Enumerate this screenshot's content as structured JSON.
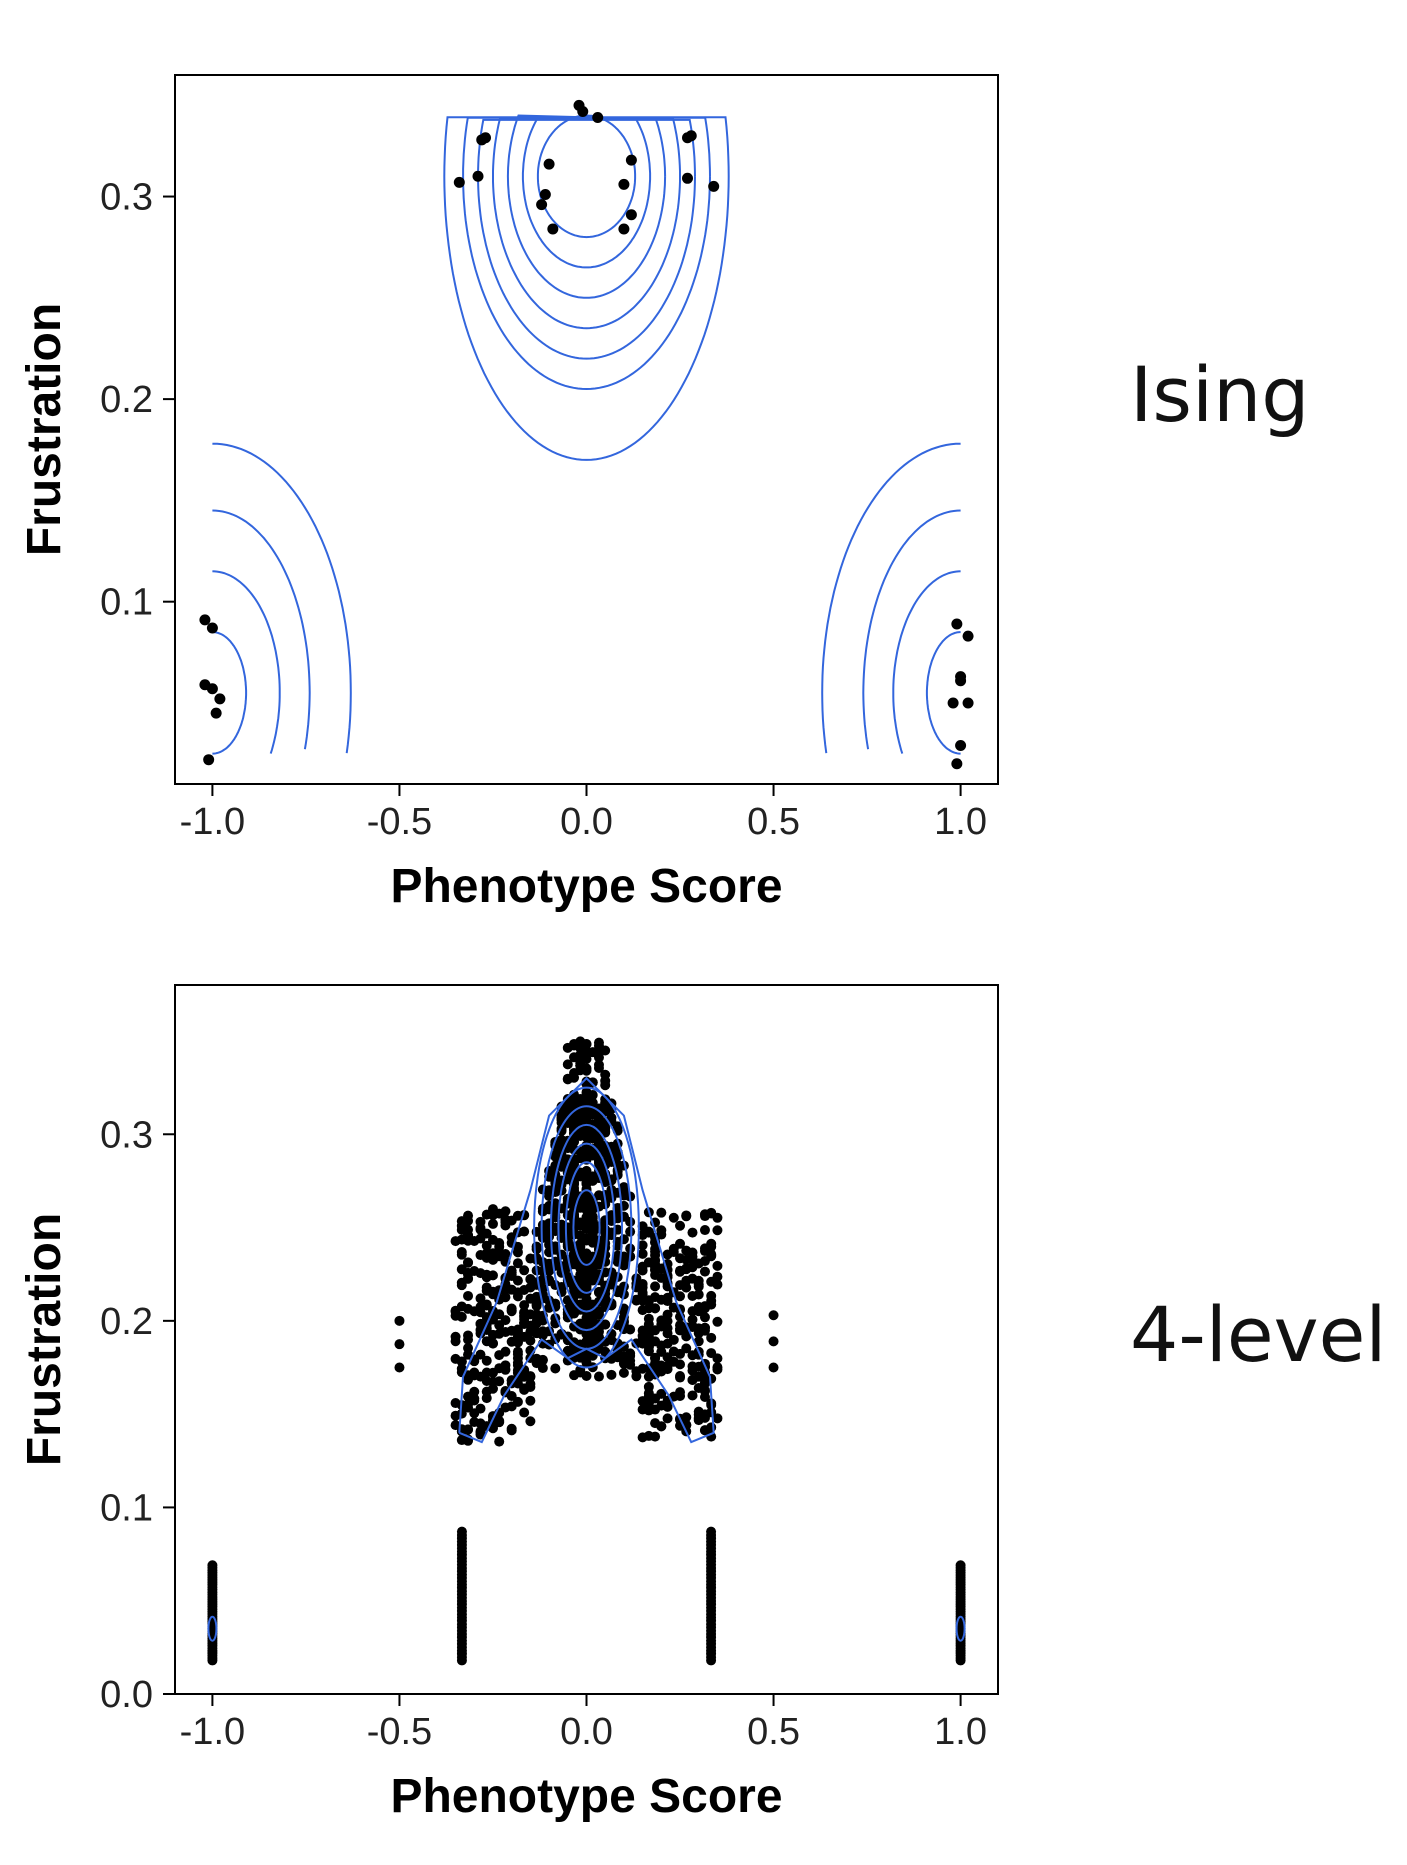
{
  "panels": {
    "top": {
      "side_label": "Ising"
    },
    "bottom": {
      "side_label": "4-level"
    }
  },
  "colors": {
    "contour": "#3366dd",
    "point": "#000000",
    "axis": "#000000"
  },
  "chart_data": [
    {
      "type": "scatter",
      "name": "Ising",
      "xlabel": "Phenotype Score",
      "ylabel": "Frustration",
      "xlim": [
        -1.1,
        1.1
      ],
      "ylim": [
        0.01,
        0.36
      ],
      "xticks": [
        -1.0,
        -0.5,
        0.0,
        0.5,
        1.0
      ],
      "xtick_labels": [
        "-1.0",
        "-0.5",
        "0.0",
        "0.5",
        "1.0"
      ],
      "yticks": [
        0.1,
        0.2,
        0.3
      ],
      "ytick_labels": [
        "0.1",
        "0.2",
        "0.3"
      ],
      "grid": false,
      "points": [
        [
          -0.02,
          0.345
        ],
        [
          -0.01,
          0.342
        ],
        [
          0.03,
          0.339
        ],
        [
          -0.1,
          0.316
        ],
        [
          0.12,
          0.318
        ],
        [
          -0.11,
          0.301
        ],
        [
          0.1,
          0.306
        ],
        [
          -0.12,
          0.296
        ],
        [
          0.12,
          0.291
        ],
        [
          -0.09,
          0.284
        ],
        [
          0.1,
          0.284
        ],
        [
          -0.28,
          0.328
        ],
        [
          -0.27,
          0.329
        ],
        [
          0.27,
          0.329
        ],
        [
          0.28,
          0.33
        ],
        [
          -0.34,
          0.307
        ],
        [
          -0.29,
          0.31
        ],
        [
          0.27,
          0.309
        ],
        [
          0.34,
          0.305
        ],
        [
          -1.02,
          0.091
        ],
        [
          -1.0,
          0.087
        ],
        [
          -1.02,
          0.059
        ],
        [
          -1.0,
          0.057
        ],
        [
          -0.98,
          0.052
        ],
        [
          -0.99,
          0.045
        ],
        [
          -1.01,
          0.022
        ],
        [
          0.99,
          0.089
        ],
        [
          1.02,
          0.083
        ],
        [
          1.0,
          0.061
        ],
        [
          1.0,
          0.063
        ],
        [
          0.98,
          0.05
        ],
        [
          1.02,
          0.05
        ],
        [
          1.0,
          0.029
        ],
        [
          0.99,
          0.02
        ]
      ],
      "contours": {
        "center_peak": {
          "x": 0.0,
          "y": 0.31,
          "radii_x": [
            0.13,
            0.17,
            0.21,
            0.25,
            0.29,
            0.33,
            0.38
          ],
          "radii_y": [
            0.03,
            0.045,
            0.06,
            0.075,
            0.09,
            0.105,
            0.14
          ]
        },
        "left_peak": {
          "x": -1.0,
          "y": 0.055,
          "radii_x": [
            0.09,
            0.18,
            0.26,
            0.37
          ],
          "radii_y": [
            0.03,
            0.06,
            0.09,
            0.123
          ]
        },
        "right_peak": {
          "x": 1.0,
          "y": 0.055,
          "radii_x": [
            0.09,
            0.18,
            0.26,
            0.37
          ],
          "radii_y": [
            0.03,
            0.06,
            0.09,
            0.123
          ]
        }
      }
    },
    {
      "type": "scatter",
      "name": "4-level",
      "xlabel": "Phenotype Score",
      "ylabel": "Frustration",
      "xlim": [
        -1.1,
        1.1
      ],
      "ylim": [
        0.0,
        0.38
      ],
      "xticks": [
        -1.0,
        -0.5,
        0.0,
        0.5,
        1.0
      ],
      "xtick_labels": [
        "-1.0",
        "-0.5",
        "0.0",
        "0.5",
        "1.0"
      ],
      "yticks": [
        0.0,
        0.1,
        0.2,
        0.3
      ],
      "ytick_labels": [
        "0.0",
        "0.1",
        "0.2",
        "0.3"
      ],
      "grid": false,
      "clusters": [
        {
          "x_range": [
            -0.05,
            0.05
          ],
          "y_range": [
            0.18,
            0.35
          ],
          "description": "central peak"
        },
        {
          "x_range": [
            -0.2,
            0.2
          ],
          "y_range": [
            0.17,
            0.32
          ]
        },
        {
          "x_range": [
            -0.35,
            -0.15
          ],
          "y_range": [
            0.135,
            0.26
          ]
        },
        {
          "x_range": [
            0.15,
            0.35
          ],
          "y_range": [
            0.135,
            0.26
          ]
        }
      ],
      "columns": [
        {
          "x": -1.0,
          "y_range": [
            0.018,
            0.069
          ]
        },
        {
          "x": -0.333,
          "y_range": [
            0.018,
            0.087
          ]
        },
        {
          "x": 0.333,
          "y_range": [
            0.018,
            0.087
          ]
        },
        {
          "x": 1.0,
          "y_range": [
            0.018,
            0.069
          ]
        },
        {
          "x": -0.5,
          "y_range": [
            0.175,
            0.2
          ]
        },
        {
          "x": 0.5,
          "y_range": [
            0.175,
            0.203
          ]
        }
      ],
      "contours": [
        {
          "x": 0.0,
          "y": 0.25,
          "radii_x": [
            0.035,
            0.055,
            0.075,
            0.095,
            0.12,
            0.14
          ],
          "radii_y": [
            0.02,
            0.035,
            0.045,
            0.055,
            0.065,
            0.075
          ]
        }
      ]
    }
  ]
}
